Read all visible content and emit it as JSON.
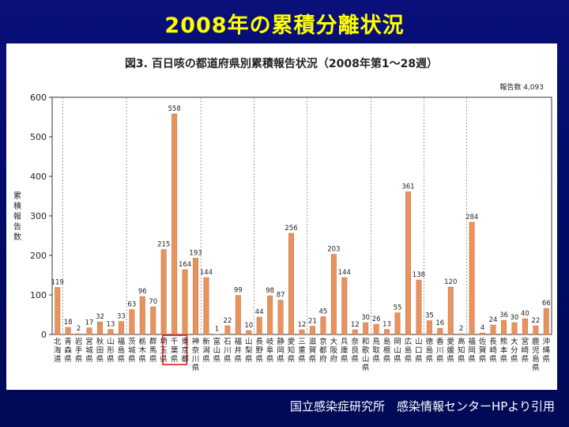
{
  "slide": {
    "title": "2008年の累積分離状況",
    "credit": "国立感染症研究所　感染情報センターHPより引用"
  },
  "chart_data": {
    "type": "bar",
    "title": "図3. 百日咳の都道府県別累積報告状況（2008年第1〜28週）",
    "total_label": "報告数 4,093",
    "ylabel": "累積報告数",
    "ylim": [
      0,
      600
    ],
    "yticks": [
      0,
      100,
      200,
      300,
      400,
      500,
      600
    ],
    "grid": "dashed vertical separators between regions",
    "bar_color": "#e8935e",
    "highlight_color": "#e02020",
    "highlight_category": "千葉県",
    "categories": [
      "北海道",
      "青森県",
      "岩手県",
      "宮城県",
      "秋田県",
      "山形県",
      "福島県",
      "茨城県",
      "栃木県",
      "群馬県",
      "埼玉県",
      "千葉県",
      "東京都",
      "神奈川県",
      "新潟県",
      "富山県",
      "石川県",
      "福井県",
      "山梨県",
      "長野県",
      "岐阜県",
      "静岡県",
      "愛知県",
      "三重県",
      "滋賀県",
      "京都府",
      "大阪府",
      "兵庫県",
      "奈良県",
      "和歌山県",
      "鳥取県",
      "島根県",
      "岡山県",
      "広島県",
      "山口県",
      "徳島県",
      "香川県",
      "愛媛県",
      "高知県",
      "福岡県",
      "佐賀県",
      "長崎県",
      "熊本県",
      "大分県",
      "宮崎県",
      "鹿児島県",
      "沖縄県"
    ],
    "values": [
      119,
      18,
      2,
      17,
      32,
      13,
      33,
      63,
      96,
      70,
      215,
      558,
      164,
      193,
      144,
      1,
      22,
      99,
      10,
      44,
      98,
      87,
      256,
      12,
      21,
      45,
      203,
      144,
      12,
      30,
      26,
      13,
      55,
      361,
      138,
      35,
      16,
      120,
      2,
      284,
      4,
      24,
      36,
      30,
      40,
      22,
      66
    ]
  }
}
